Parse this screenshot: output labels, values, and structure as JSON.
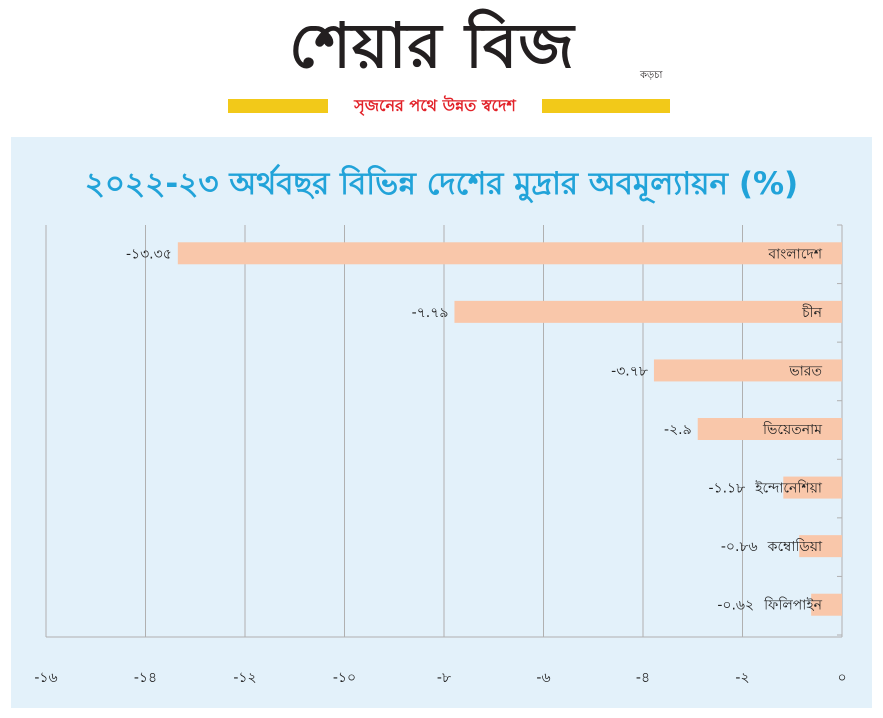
{
  "masthead": {
    "logo": "শেয়ার বিজ",
    "logo_small": "কড়চা",
    "tagline": "সৃজনের পথে উন্নত স্বদেশ"
  },
  "colors": {
    "bar": "#f9c7aa",
    "title": "#21a3d9",
    "panel": "#e3f1fa",
    "grid": "#b0b0b0",
    "tagline_bar": "#f2c919",
    "tagline_text": "#e2232a"
  },
  "chart_data": {
    "type": "bar",
    "orientation": "horizontal",
    "title": "২০২২-২৩ অর্থবছর বিভিন্ন দেশের মুদ্রার অবমূল্যায়ন (%)",
    "categories": [
      "বাংলাদেশ",
      "চীন",
      "ভারত",
      "ভিয়েতনাম",
      "ইন্দোনেশিয়া",
      "কম্বোডিয়া",
      "ফিলিপাইন"
    ],
    "values": [
      -13.35,
      -7.79,
      -3.78,
      -2.9,
      -1.18,
      -0.86,
      -0.62
    ],
    "value_labels": [
      "-১৩.৩৫",
      "-৭.৭৯",
      "-৩.৭৮",
      "-২.৯",
      "-১.১৮",
      "-০.৮৬",
      "-০.৬২"
    ],
    "xlim": [
      -16,
      0
    ],
    "x_ticks": [
      -16,
      -14,
      -12,
      -10,
      -8,
      -6,
      -4,
      -2,
      0
    ],
    "x_tick_labels": [
      "-১৬",
      "-১৪",
      "-১২",
      "-১০",
      "-৮",
      "-৬",
      "-৪",
      "-২",
      "০"
    ],
    "grid": "vertical",
    "xlabel": "",
    "ylabel": ""
  }
}
